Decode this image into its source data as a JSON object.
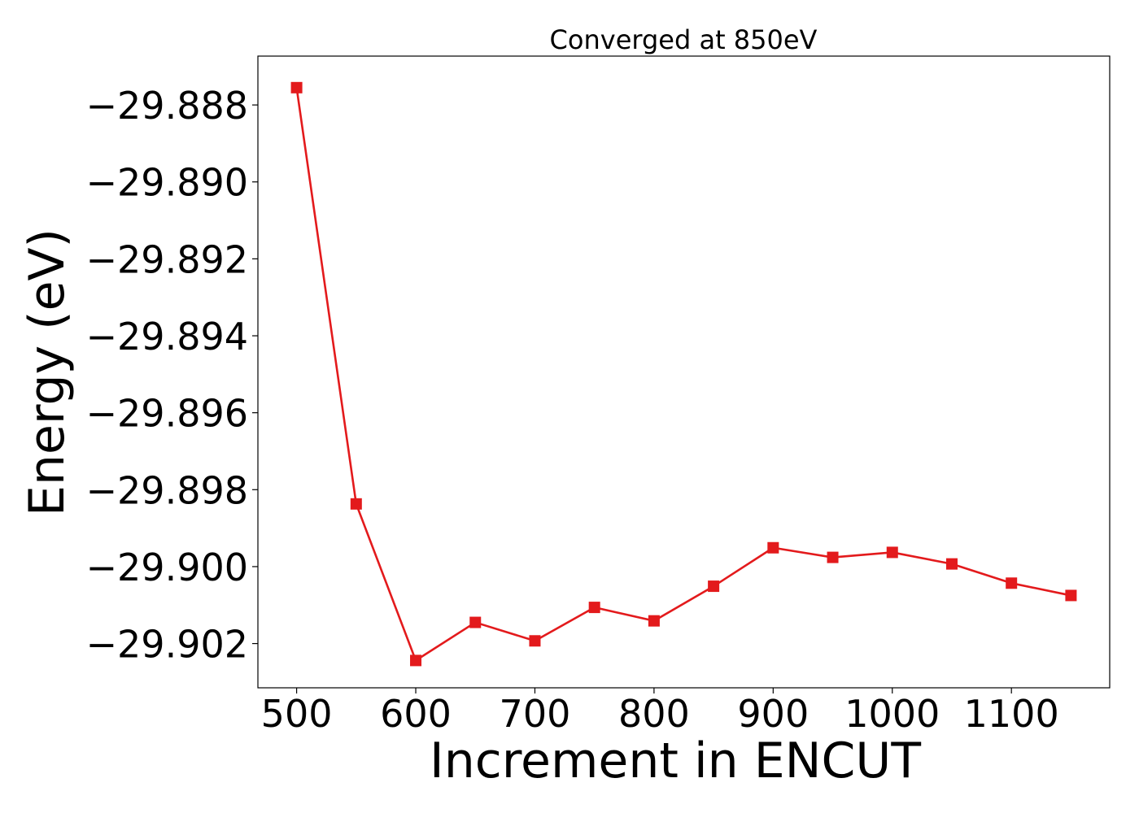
{
  "chart_data": {
    "type": "line",
    "title": "Converged at 850eV",
    "xlabel": "Increment in ENCUT",
    "ylabel": "Energy (eV)",
    "xlim": [
      467.5,
      1182.5
    ],
    "ylim": [
      -29.90315,
      -29.88673
    ],
    "xticks": [
      500,
      600,
      700,
      800,
      900,
      1000,
      1100
    ],
    "xtick_labels": [
      "500",
      "600",
      "700",
      "800",
      "900",
      "1000",
      "1100"
    ],
    "yticks": [
      -29.888,
      -29.89,
      -29.892,
      -29.894,
      -29.896,
      -29.898,
      -29.9,
      -29.902
    ],
    "ytick_labels": [
      "−29.888",
      "−29.890",
      "−29.892",
      "−29.894",
      "−29.896",
      "−29.898",
      "−29.900",
      "−29.902"
    ],
    "grid": false,
    "series": [
      {
        "color": "#e31a1c",
        "marker": "square",
        "x": [
          500,
          550,
          600,
          650,
          700,
          750,
          800,
          850,
          900,
          950,
          1000,
          1050,
          1100,
          1150
        ],
        "y": [
          -29.88755,
          -29.89837,
          -29.90244,
          -29.90145,
          -29.90193,
          -29.90106,
          -29.90141,
          -29.90051,
          -29.89951,
          -29.89976,
          -29.89963,
          -29.89993,
          -29.90043,
          -29.90075
        ]
      }
    ]
  }
}
